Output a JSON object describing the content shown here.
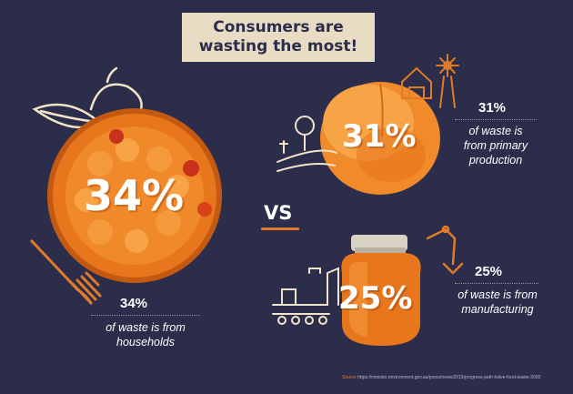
{
  "title": {
    "line1": "Consumers are",
    "line2": "wasting the most!"
  },
  "households": {
    "big": "34%",
    "pct": "34%",
    "desc_line1": "of waste is from",
    "desc_line2": "households"
  },
  "primary": {
    "big": "31%",
    "pct": "31%",
    "desc_line1": "of waste is",
    "desc_line2": "from primary",
    "desc_line3": "production"
  },
  "manufacturing": {
    "big": "25%",
    "pct": "25%",
    "desc_line1": "of waste is from",
    "desc_line2": "manufacturing"
  },
  "vs": "VS",
  "source": {
    "label": "Source",
    "url": "https://minister.environment.gov.au/press/news/2019/progress-path-halve-food-waste-2030"
  },
  "colors": {
    "background": "#2b2d4a",
    "accent": "#e07b2a",
    "title_bg": "#e8dcc4"
  }
}
